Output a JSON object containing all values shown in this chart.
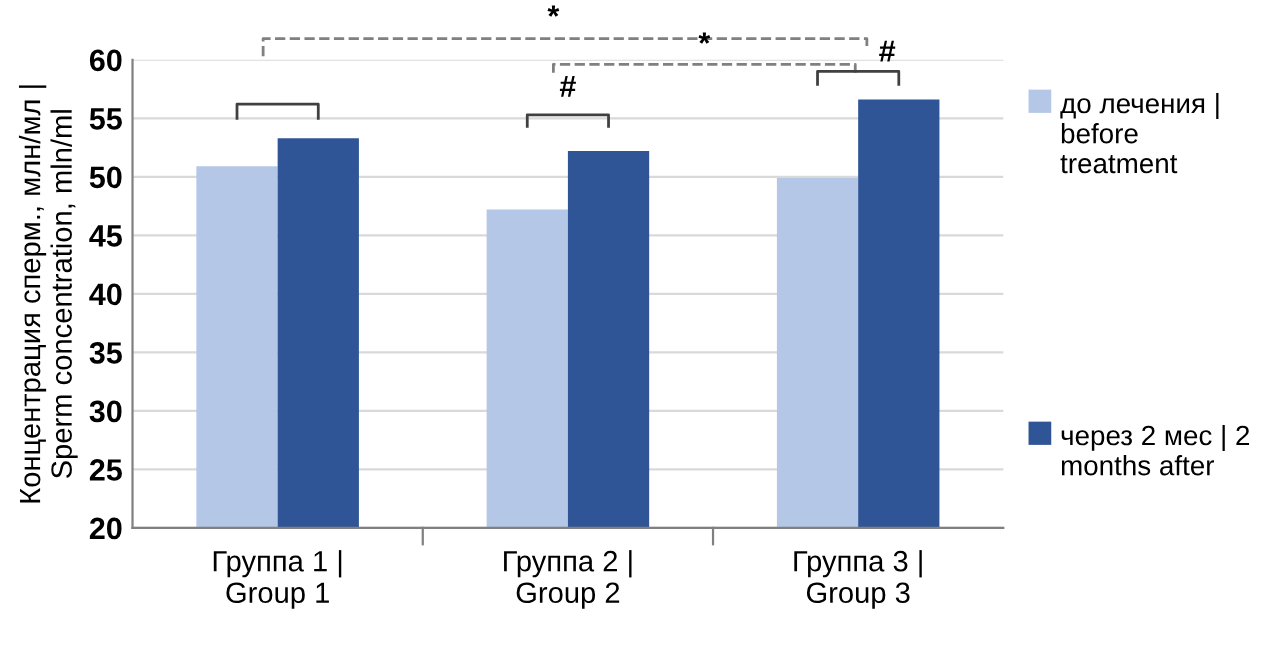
{
  "chart_data": {
    "type": "bar",
    "ylabel": "Концентрация сперм., млн/мл |\nSperm concentration, mln/ml",
    "categories": [
      "Группа 1 |\nGroup 1",
      "Группа 2 |\nGroup 2",
      "Группа 3 |\nGroup 3"
    ],
    "series": [
      {
        "name": "до лечения |\nbefore\ntreatment",
        "color": "#b4c7e7",
        "values": [
          50.9,
          47.2,
          49.9
        ]
      },
      {
        "name": "через 2 мес | 2\nmonths after",
        "color": "#2f5597",
        "values": [
          53.3,
          52.2,
          56.6
        ]
      }
    ],
    "ylim": [
      20,
      60
    ],
    "yticks": [
      20,
      25,
      30,
      35,
      40,
      45,
      50,
      55,
      60
    ],
    "grid": "y",
    "legend": "right",
    "annotations": [
      "*",
      "*",
      "#",
      "#"
    ]
  }
}
